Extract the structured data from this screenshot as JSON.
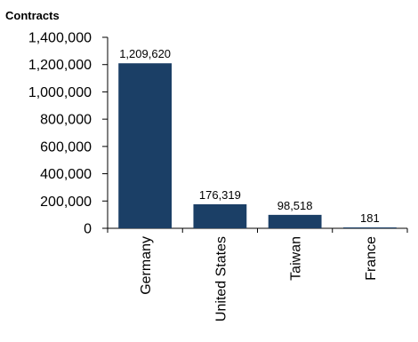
{
  "chart_data": {
    "type": "bar",
    "title": "",
    "ylabel": "Contracts",
    "xlabel": "",
    "categories": [
      "Germany",
      "United States",
      "Taiwan",
      "France"
    ],
    "values": [
      1209620,
      176319,
      98518,
      181
    ],
    "data_labels": [
      "1,209,620",
      "176,319",
      "98,518",
      "181"
    ],
    "yticks": [
      "0",
      "200,000",
      "400,000",
      "600,000",
      "800,000",
      "1,000,000",
      "1,200,000",
      "1,400,000"
    ],
    "ylim": [
      0,
      1400000
    ],
    "bar_color": "#1b3f66",
    "grid": false,
    "legend": "none",
    "x_tick_rotation": "vertical"
  }
}
